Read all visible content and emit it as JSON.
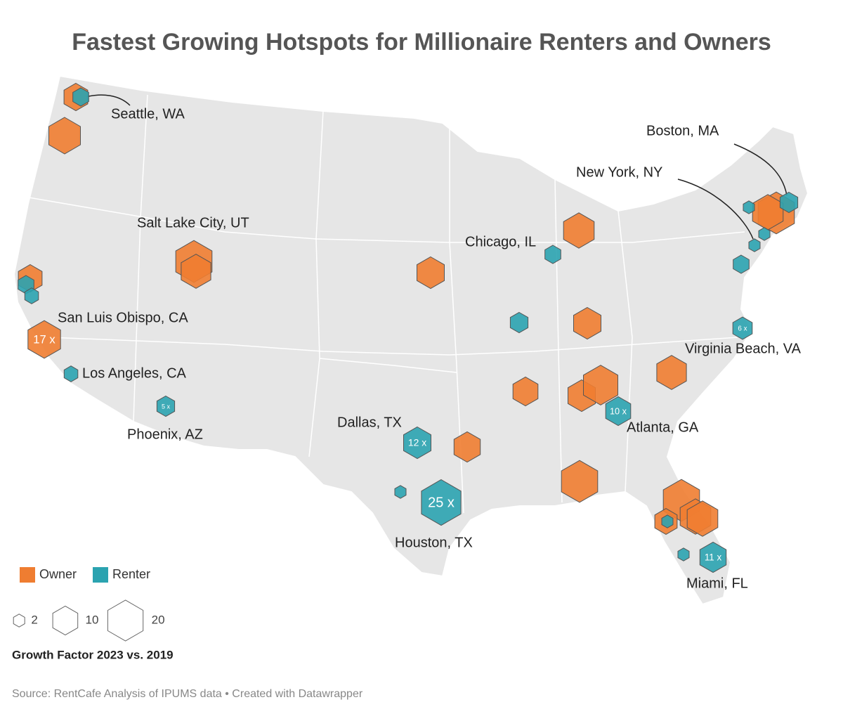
{
  "chart_data": {
    "type": "hexmap",
    "title": "Fastest Growing Hotspots for Millionaire Renters and Owners",
    "series": [
      {
        "name": "Owner",
        "color": "#ef7d31",
        "values": [
          9,
          16,
          21,
          14,
          9,
          17,
          12,
          15,
          12,
          10,
          12,
          19,
          14,
          11,
          21,
          21,
          15,
          21,
          15,
          8,
          15
        ],
        "value_labels": [
          null,
          null,
          null,
          null,
          null,
          "17 x",
          null,
          null,
          null,
          null,
          null,
          null,
          null,
          null,
          null,
          null,
          null,
          null,
          null,
          null,
          null
        ]
      },
      {
        "name": "Renter",
        "color": "#2ba3b0",
        "values": [
          4,
          4,
          3,
          3,
          5,
          12,
          2,
          25,
          4,
          5,
          10,
          6,
          2,
          4,
          5,
          2,
          2,
          2,
          11,
          2
        ],
        "value_labels": [
          null,
          null,
          null,
          null,
          "5 x",
          "12 x",
          null,
          "25 x",
          null,
          null,
          "10 x",
          "6 x",
          null,
          null,
          null,
          null,
          null,
          null,
          "11 x",
          null
        ]
      }
    ],
    "annotations": [
      "Seattle, WA",
      "Boston, MA",
      "New York, NY",
      "Salt Lake City, UT",
      "Chicago, IL",
      "San Luis Obispo, CA",
      "Los Angeles, CA",
      "Phoenix, AZ",
      "Dallas, TX",
      "Houston, TX",
      "Atlanta, GA",
      "Virginia Beach, VA",
      "Miami, FL"
    ],
    "size_legend": {
      "values": [
        2,
        10,
        20
      ],
      "title": "Growth Factor 2023 vs. 2019"
    },
    "source": "Source: RentCafe Analysis of IPUMS data • Created with Datawrapper"
  }
}
